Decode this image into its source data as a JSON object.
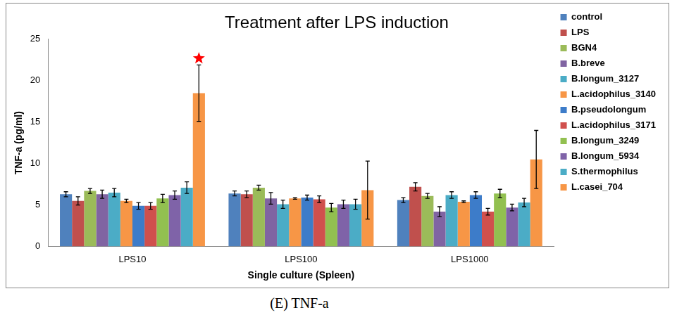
{
  "chart_data": {
    "type": "bar",
    "title": "Treatment after LPS induction",
    "x_label": "Single culture (Spleen)",
    "y_label": "TNF-a (pg/ml)",
    "caption": "(E)  TNF-a",
    "categories": [
      "LPS10",
      "LPS100",
      "LPS1000"
    ],
    "series": [
      {
        "name": "control",
        "color": "#4F81BD",
        "values": [
          6.3,
          6.4,
          5.6
        ],
        "errors": [
          0.3,
          0.3,
          0.3
        ]
      },
      {
        "name": "LPS",
        "color": "#C0504D",
        "values": [
          5.5,
          6.3,
          7.2
        ],
        "errors": [
          0.5,
          0.4,
          0.5
        ]
      },
      {
        "name": "BGN4",
        "color": "#9BBB59",
        "values": [
          6.7,
          7.1,
          6.1
        ],
        "errors": [
          0.3,
          0.3,
          0.3
        ]
      },
      {
        "name": "B.breve",
        "color": "#8064A2",
        "values": [
          6.3,
          5.8,
          4.2
        ],
        "errors": [
          0.5,
          0.7,
          0.6
        ]
      },
      {
        "name": "B.longum_3127",
        "color": "#4BACC6",
        "values": [
          6.5,
          5.1,
          6.2
        ],
        "errors": [
          0.5,
          0.5,
          0.4
        ]
      },
      {
        "name": "L.acidophilus_3140",
        "color": "#F79646",
        "values": [
          5.5,
          5.8,
          5.4
        ],
        "errors": [
          0.2,
          0.1,
          0.1
        ]
      },
      {
        "name": "B.pseudolongum",
        "color": "#3D7CC9",
        "values": [
          4.9,
          5.9,
          6.2
        ],
        "errors": [
          0.4,
          0.3,
          0.4
        ]
      },
      {
        "name": "L.acidophilus_3171",
        "color": "#D0504D",
        "values": [
          4.9,
          5.7,
          4.2
        ],
        "errors": [
          0.4,
          0.4,
          0.4
        ]
      },
      {
        "name": "B.longum_3249",
        "color": "#92C050",
        "values": [
          5.8,
          4.7,
          6.4
        ],
        "errors": [
          0.5,
          0.5,
          0.5
        ]
      },
      {
        "name": "B.longum_5934",
        "color": "#7F63A8",
        "values": [
          6.2,
          5.1,
          4.7
        ],
        "errors": [
          0.5,
          0.5,
          0.4
        ]
      },
      {
        "name": "S.thermophilus",
        "color": "#4BACC6",
        "values": [
          7.1,
          5.1,
          5.3
        ],
        "errors": [
          0.7,
          0.6,
          0.5
        ]
      },
      {
        "name": "L.casei_704",
        "color": "#F79646",
        "values": [
          18.5,
          6.8,
          10.5
        ],
        "errors": [
          3.4,
          3.5,
          3.5
        ]
      }
    ],
    "annotations": [
      {
        "category": "LPS10",
        "series": "L.casei_704",
        "value": 22.7,
        "marker": "star",
        "color": "#FF0000"
      }
    ],
    "ylim": [
      0,
      25
    ],
    "yticks": [
      0,
      5,
      10,
      15,
      20,
      25
    ],
    "grid": false,
    "legend": "right"
  }
}
